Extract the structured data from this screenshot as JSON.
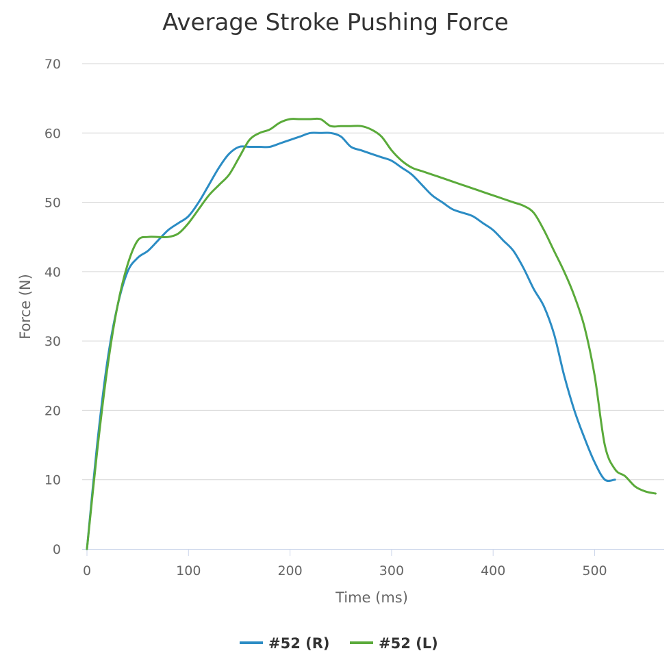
{
  "chart_data": {
    "type": "line",
    "title": "Average Stroke Pushing Force",
    "xlabel": "Time (ms)",
    "ylabel": "Force (N)",
    "xlim": [
      0,
      560
    ],
    "ylim": [
      0,
      70
    ],
    "xticks": [
      0,
      100,
      200,
      300,
      400,
      500
    ],
    "yticks": [
      0,
      10,
      20,
      30,
      40,
      50,
      60,
      70
    ],
    "grid": true,
    "legend_position": "bottom-center",
    "series": [
      {
        "name": "#52 (R)",
        "color": "#2b8cc4",
        "x": [
          0,
          10,
          20,
          30,
          40,
          50,
          60,
          70,
          80,
          90,
          100,
          110,
          120,
          130,
          140,
          150,
          160,
          170,
          180,
          190,
          200,
          210,
          220,
          230,
          240,
          250,
          260,
          270,
          280,
          290,
          300,
          310,
          320,
          330,
          340,
          350,
          360,
          370,
          380,
          390,
          400,
          410,
          420,
          430,
          440,
          450,
          460,
          470,
          480,
          490,
          500,
          510,
          520
        ],
        "values": [
          0,
          15,
          27,
          35,
          40,
          42,
          43,
          44.5,
          46,
          47,
          48,
          50,
          52.5,
          55,
          57,
          58,
          58,
          58,
          58,
          58.5,
          59,
          59.5,
          60,
          60,
          60,
          59.5,
          58,
          57.5,
          57,
          56.5,
          56,
          55,
          54,
          52.5,
          51,
          50,
          49,
          48.5,
          48,
          47,
          46,
          44.5,
          43,
          40.5,
          37.5,
          35,
          31,
          25,
          20,
          16,
          12.5,
          10,
          10
        ]
      },
      {
        "name": "#52 (L)",
        "color": "#5aaa3a",
        "x": [
          0,
          10,
          20,
          30,
          40,
          50,
          60,
          70,
          80,
          90,
          100,
          110,
          120,
          130,
          140,
          150,
          160,
          170,
          180,
          190,
          200,
          210,
          220,
          230,
          240,
          250,
          260,
          270,
          280,
          290,
          300,
          310,
          320,
          330,
          340,
          350,
          360,
          370,
          380,
          390,
          400,
          410,
          420,
          430,
          440,
          450,
          460,
          470,
          480,
          490,
          500,
          510,
          520,
          530,
          540,
          550,
          560
        ],
        "values": [
          0,
          14,
          26,
          35,
          41,
          44.5,
          45,
          45,
          45,
          45.5,
          47,
          49,
          51,
          52.5,
          54,
          56.5,
          59,
          60,
          60.5,
          61.5,
          62,
          62,
          62,
          62,
          61,
          61,
          61,
          61,
          60.5,
          59.5,
          57.5,
          56,
          55,
          54.5,
          54,
          53.5,
          53,
          52.5,
          52,
          51.5,
          51,
          50.5,
          50,
          49.5,
          48.5,
          46,
          43,
          40,
          36.5,
          32,
          25,
          15,
          11.5,
          10.5,
          9,
          8.3,
          8
        ]
      }
    ]
  }
}
